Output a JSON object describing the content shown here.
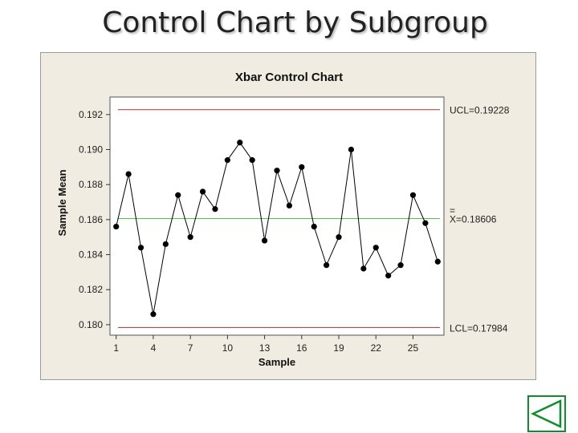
{
  "slide": {
    "title": "Control Chart by Subgroup"
  },
  "nav": {
    "icon": "back-triangle-icon",
    "color": "#0e8f2a"
  },
  "chart_data": {
    "type": "line",
    "title": "Xbar Control Chart",
    "xlabel": "Sample",
    "ylabel": "Sample Mean",
    "xlim": [
      0.5,
      27.5
    ],
    "ylim": [
      0.1794,
      0.193
    ],
    "x_ticks": [
      1,
      4,
      7,
      10,
      13,
      16,
      19,
      22,
      25
    ],
    "y_ticks": [
      0.18,
      0.182,
      0.184,
      0.186,
      0.188,
      0.19,
      0.192
    ],
    "x_tick_labels": [
      "1",
      "4",
      "7",
      "10",
      "13",
      "16",
      "19",
      "22",
      "25"
    ],
    "y_tick_labels": [
      "0.180",
      "0.182",
      "0.184",
      "0.186",
      "0.188",
      "0.190",
      "0.192"
    ],
    "x": [
      1,
      2,
      3,
      4,
      5,
      6,
      7,
      8,
      9,
      10,
      11,
      12,
      13,
      14,
      15,
      16,
      17,
      18,
      19,
      20,
      21,
      22,
      23,
      24,
      25,
      26,
      27
    ],
    "series": [
      {
        "values": [
          0.1856,
          0.1886,
          0.1844,
          0.1806,
          0.1846,
          0.1874,
          0.185,
          0.1876,
          0.1866,
          0.1894,
          0.1904,
          0.1894,
          0.1848,
          0.1888,
          0.1868,
          0.189,
          0.1856,
          0.1834,
          0.185,
          0.19,
          0.1832,
          0.1844,
          0.1828,
          0.1834,
          0.1874,
          0.1858,
          0.1836
        ],
        "color": "#000000"
      }
    ],
    "control_limits": [
      {
        "label": "UCL=0.19228",
        "value": 0.19228,
        "color": "#a83232"
      },
      {
        "label": "X=0.18606",
        "value": 0.18606,
        "color": "#4fc24f",
        "overline": "="
      },
      {
        "label": "LCL=0.17984",
        "value": 0.17984,
        "color": "#a83232"
      }
    ],
    "plot_background": "#ffffff",
    "panel_background": "#f0ece1",
    "grid": false
  }
}
